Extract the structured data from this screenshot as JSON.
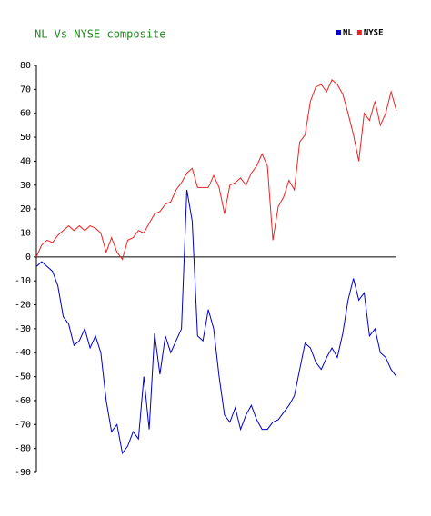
{
  "chart_data": {
    "type": "line",
    "title": "NL Vs NYSE composite",
    "categories": [
      null,
      null,
      null,
      null,
      null,
      null,
      null,
      null,
      null,
      null,
      null,
      null,
      null,
      null,
      null,
      null,
      null,
      null,
      null,
      null,
      null,
      null,
      null,
      null,
      null,
      null,
      null,
      null,
      null,
      null,
      null,
      null,
      null,
      null,
      null,
      null,
      null,
      null,
      null,
      null,
      null,
      null,
      null,
      null,
      null,
      null,
      null,
      null,
      null,
      null,
      null,
      null,
      null,
      null,
      null,
      null,
      null,
      null,
      null,
      null,
      null,
      null,
      null,
      null,
      null,
      null,
      null,
      null
    ],
    "series": [
      {
        "name": "NL",
        "color": "#0000cc",
        "values": [
          -4,
          -2,
          -4,
          -6,
          -12,
          -25,
          -28,
          -37,
          -35,
          -30,
          -38,
          -33,
          -40,
          -60,
          -73,
          -70,
          -82,
          -79,
          -73,
          -76,
          -50,
          -72,
          -32,
          -49,
          -33,
          -40,
          -35,
          -30,
          28,
          15,
          -33,
          -35,
          -22,
          -30,
          -50,
          -66,
          -69,
          -63,
          -72,
          -66,
          -62,
          -68,
          -72,
          -72,
          -69,
          -68,
          -65,
          -62,
          -58,
          -47,
          -36,
          -38,
          -44,
          -47,
          -42,
          -38,
          -42,
          -32,
          -18,
          -9,
          -18,
          -15,
          -33,
          -30,
          -40,
          -42,
          -47,
          -50
        ]
      },
      {
        "name": "NYSE",
        "color": "#ee2222",
        "values": [
          0,
          5,
          7,
          6,
          9,
          11,
          13,
          11,
          13,
          11,
          13,
          12,
          10,
          2,
          8,
          2,
          -1,
          7,
          8,
          11,
          10,
          14,
          18,
          19,
          22,
          23,
          28,
          31,
          35,
          37,
          29,
          29,
          29,
          34,
          29,
          18,
          30,
          31,
          33,
          30,
          35,
          38,
          43,
          38,
          7,
          21,
          25,
          32,
          28,
          48,
          51,
          65,
          71,
          72,
          69,
          74,
          72,
          68,
          60,
          51,
          40,
          60,
          57,
          65,
          55,
          60,
          69,
          61
        ]
      }
    ],
    "ylim": [
      -90,
      80
    ],
    "yticks": [
      -90,
      -80,
      -70,
      -60,
      -50,
      -40,
      -30,
      -20,
      -10,
      0,
      10,
      20,
      30,
      40,
      50,
      60,
      70,
      80
    ],
    "zero_line": true
  }
}
